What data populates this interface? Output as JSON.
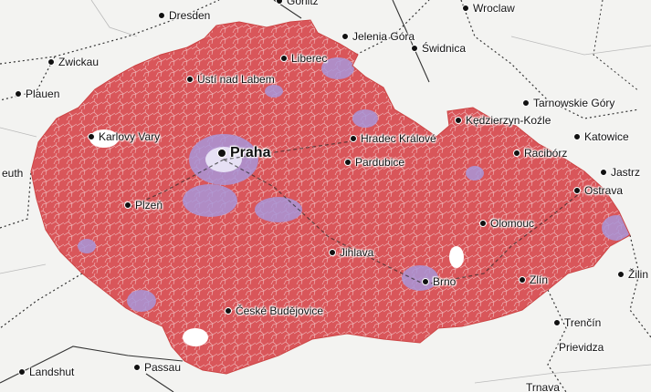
{
  "colors": {
    "background": "#f3f3f1",
    "majority": "#d9565a",
    "minority": "#a895d8",
    "boundary": "#ffffff",
    "roads": "#222222"
  },
  "cities": [
    {
      "id": "dresden",
      "name": "Dresden"
    },
    {
      "id": "gorlitz",
      "name": "Görlitz"
    },
    {
      "id": "wroclaw",
      "name": "Wroclaw"
    },
    {
      "id": "zwickau",
      "name": "Zwickau"
    },
    {
      "id": "jelenia-gora",
      "name": "Jelenia Góra"
    },
    {
      "id": "swidnica",
      "name": "Świdnica"
    },
    {
      "id": "liberec",
      "name": "Liberec"
    },
    {
      "id": "usti",
      "name": "Ústí nad Labem"
    },
    {
      "id": "plauen",
      "name": "Plauen"
    },
    {
      "id": "tarnowskie",
      "name": "Tarnowskie Góry"
    },
    {
      "id": "kedzierzyn",
      "name": "Kędzierzyn-Koźle"
    },
    {
      "id": "karlovy-vary",
      "name": "Karlovy Vary"
    },
    {
      "id": "hradec",
      "name": "Hradec Králové"
    },
    {
      "id": "katowice",
      "name": "Katowice"
    },
    {
      "id": "praha",
      "name": "Praha"
    },
    {
      "id": "raciborz",
      "name": "Racibórz"
    },
    {
      "id": "pardubice",
      "name": "Pardubice"
    },
    {
      "id": "bayreuth",
      "name": "euth"
    },
    {
      "id": "jastrzebie",
      "name": "Jastrz"
    },
    {
      "id": "ostrava",
      "name": "Ostrava"
    },
    {
      "id": "plzen",
      "name": "Plzeň"
    },
    {
      "id": "olomouc",
      "name": "Olomouc"
    },
    {
      "id": "jihlava",
      "name": "Jihlava"
    },
    {
      "id": "brno",
      "name": "Brno"
    },
    {
      "id": "zlin",
      "name": "Zlín"
    },
    {
      "id": "zilina",
      "name": "Žilin"
    },
    {
      "id": "ceske-budejovice",
      "name": "České Budějovice"
    },
    {
      "id": "trencin",
      "name": "Trenčín"
    },
    {
      "id": "prievidza",
      "name": "Prievidza"
    },
    {
      "id": "landshut",
      "name": "Landshut"
    },
    {
      "id": "passau",
      "name": "Passau"
    },
    {
      "id": "trnava",
      "name": "Trnava"
    }
  ]
}
